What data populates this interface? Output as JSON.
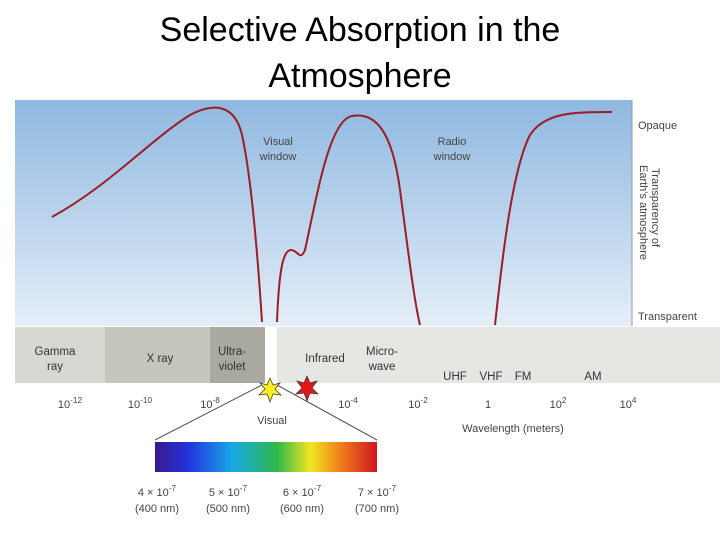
{
  "title": [
    "Selective Absorption in the",
    "Atmosphere"
  ],
  "curve_labels": {
    "visual_window": [
      "Visual",
      "window"
    ],
    "radio_window": [
      "Radio",
      "window"
    ]
  },
  "side_labels": {
    "opaque": "Opaque",
    "transparency": [
      "Transparency of",
      "Earth's atmosphere"
    ],
    "transparent": "Transparent"
  },
  "bands": [
    [
      "Gamma",
      "ray"
    ],
    [
      "X ray"
    ],
    [
      "Ultra-",
      "violet"
    ],
    [
      "Infrared"
    ],
    [
      "Micro-",
      "wave"
    ],
    [
      "UHF"
    ],
    [
      "VHF"
    ],
    [
      "FM"
    ],
    [
      "AM"
    ]
  ],
  "wavelength_ticks": [
    {
      "base": "10",
      "exp": "-12"
    },
    {
      "base": "10",
      "exp": "-10"
    },
    {
      "base": "10",
      "exp": "-8"
    },
    {
      "base": "10",
      "exp": "-4"
    },
    {
      "base": "10",
      "exp": "-2"
    },
    {
      "base": "1"
    },
    {
      "base": "10",
      "exp": "2"
    },
    {
      "base": "10",
      "exp": "4"
    }
  ],
  "visual_label": "Visual",
  "axis_label": "Wavelength (meters)",
  "spectrum_ticks": [
    {
      "base": "4 × 10",
      "exp": "-7",
      "nm": "(400 nm)"
    },
    {
      "base": "5 × 10",
      "exp": "-7",
      "nm": "(500 nm)"
    },
    {
      "base": "6 × 10",
      "exp": "-7",
      "nm": "(600 nm)"
    },
    {
      "base": "7 × 10",
      "exp": "-7",
      "nm": "(700 nm)"
    }
  ]
}
